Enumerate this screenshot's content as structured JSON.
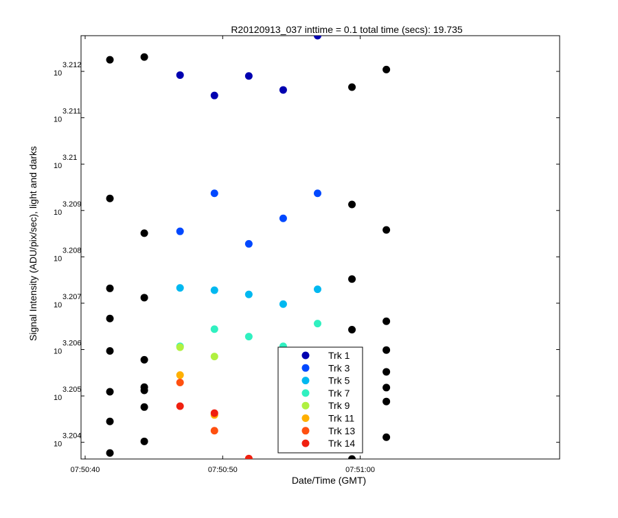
{
  "chart_data": {
    "type": "scatter",
    "title": "R20120913_037 inttime = 0.1 total time (secs): 19.735",
    "xlabel": "Date/Time (GMT)",
    "ylabel": "Signal Intensity (ADU/pix/sec), light and darks",
    "x_axis": {
      "range_seconds_after_07_50_40": [
        -0.3,
        34.5
      ],
      "ticks": [
        {
          "value": 0,
          "label": "07:50:40"
        },
        {
          "value": 10,
          "label": "07:50:50"
        },
        {
          "value": 20,
          "label": "07:51:00"
        }
      ]
    },
    "y_axis": {
      "scale": "log10",
      "range_exponent": [
        3.20364,
        3.21277
      ],
      "tick_base": "10",
      "ticks": [
        {
          "exponent": 3.204,
          "label": "3.204"
        },
        {
          "exponent": 3.205,
          "label": "3.205"
        },
        {
          "exponent": 3.206,
          "label": "3.206"
        },
        {
          "exponent": 3.207,
          "label": "3.207"
        },
        {
          "exponent": 3.208,
          "label": "3.208"
        },
        {
          "exponent": 3.209,
          "label": "3.209"
        },
        {
          "exponent": 3.21,
          "label": "3.21"
        },
        {
          "exponent": 3.211,
          "label": "3.211"
        },
        {
          "exponent": 3.212,
          "label": "3.212"
        }
      ]
    },
    "grid": false,
    "legend_position": "bottom-center",
    "series": [
      {
        "name": "Trk 1",
        "color": "#0000b0",
        "points": [
          [
            6.9,
            3.21192
          ],
          [
            9.4,
            3.21148
          ],
          [
            11.9,
            3.2119
          ],
          [
            14.4,
            3.2116
          ],
          [
            16.9,
            3.21277
          ]
        ]
      },
      {
        "name": "Trk 3",
        "color": "#0048ff",
        "points": [
          [
            6.9,
            3.20855
          ],
          [
            9.4,
            3.20937
          ],
          [
            11.9,
            3.20828
          ],
          [
            14.4,
            3.20883
          ],
          [
            16.9,
            3.20937
          ]
        ]
      },
      {
        "name": "Trk 5",
        "color": "#00b8f0",
        "points": [
          [
            6.9,
            3.20733
          ],
          [
            9.4,
            3.20728
          ],
          [
            11.9,
            3.20719
          ],
          [
            14.4,
            3.20698
          ],
          [
            16.9,
            3.2073
          ]
        ]
      },
      {
        "name": "Trk 7",
        "color": "#30f0c0",
        "points": [
          [
            6.9,
            3.20607
          ],
          [
            9.4,
            3.20644
          ],
          [
            11.9,
            3.20628
          ],
          [
            14.4,
            3.20607
          ],
          [
            16.9,
            3.20656
          ]
        ]
      },
      {
        "name": "Trk 9",
        "color": "#b0f040",
        "points": [
          [
            6.9,
            3.20605
          ],
          [
            9.4,
            3.20585
          ],
          [
            16.9,
            3.20593
          ]
        ]
      },
      {
        "name": "Trk 11",
        "color": "#ffb000",
        "points": [
          [
            6.9,
            3.20545
          ],
          [
            9.4,
            3.20459
          ],
          [
            16.9,
            3.2059
          ]
        ]
      },
      {
        "name": "Trk 13",
        "color": "#ff5010",
        "points": [
          [
            6.9,
            3.20529
          ],
          [
            9.4,
            3.20425
          ],
          [
            11.9,
            3.20364
          ],
          [
            16.9,
            3.20462
          ]
        ]
      },
      {
        "name": "Trk 14",
        "color": "#f02010",
        "points": [
          [
            6.9,
            3.20478
          ],
          [
            9.4,
            3.20463
          ],
          [
            11.9,
            3.20365
          ],
          [
            16.9,
            3.205
          ]
        ]
      },
      {
        "name": "",
        "color": "#000000",
        "points": [
          [
            1.8,
            3.21225
          ],
          [
            1.8,
            3.20926
          ],
          [
            1.8,
            3.20732
          ],
          [
            1.8,
            3.20667
          ],
          [
            1.8,
            3.20597
          ],
          [
            1.8,
            3.20509
          ],
          [
            1.8,
            3.20445
          ],
          [
            1.8,
            3.20377
          ],
          [
            4.3,
            3.21231
          ],
          [
            4.3,
            3.20851
          ],
          [
            4.3,
            3.20712
          ],
          [
            4.3,
            3.20578
          ],
          [
            4.3,
            3.20519
          ],
          [
            4.3,
            3.20512
          ],
          [
            4.3,
            3.20476
          ],
          [
            4.3,
            3.20402
          ],
          [
            19.4,
            3.21166
          ],
          [
            19.4,
            3.20913
          ],
          [
            19.4,
            3.20752
          ],
          [
            19.4,
            3.20643
          ],
          [
            19.4,
            3.20558
          ],
          [
            19.4,
            3.20463
          ],
          [
            19.4,
            3.20364
          ],
          [
            21.9,
            3.21204
          ],
          [
            21.9,
            3.20858
          ],
          [
            21.9,
            3.20661
          ],
          [
            21.9,
            3.20599
          ],
          [
            21.9,
            3.20552
          ],
          [
            21.9,
            3.20518
          ],
          [
            21.9,
            3.20488
          ],
          [
            21.9,
            3.20411
          ]
        ]
      }
    ]
  }
}
